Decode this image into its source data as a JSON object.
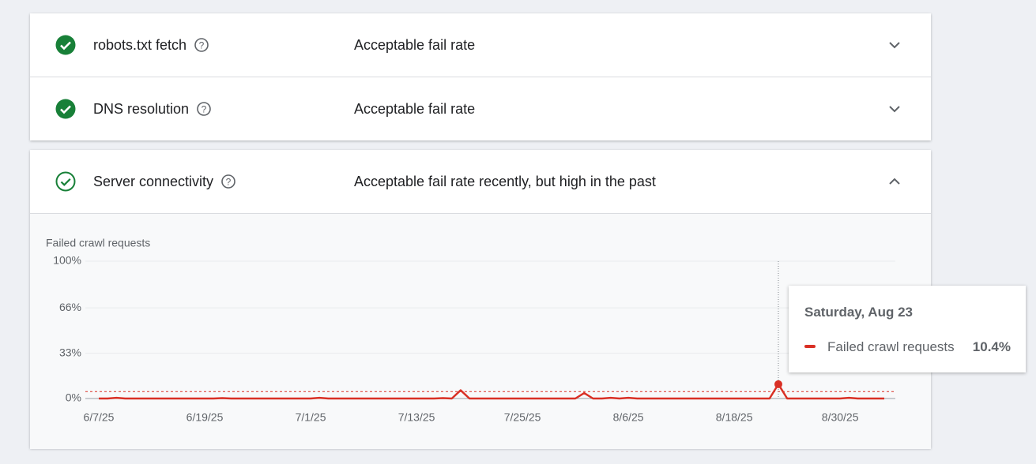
{
  "items": [
    {
      "title": "robots.txt fetch",
      "status": "Acceptable fail rate"
    },
    {
      "title": "DNS resolution",
      "status": "Acceptable fail rate"
    },
    {
      "title": "Server connectivity",
      "status": "Acceptable fail rate recently, but high in the past"
    }
  ],
  "chart_data": {
    "type": "line",
    "y_label": "Failed crawl requests",
    "x": [
      "6/7/25",
      "6/8/25",
      "6/9/25",
      "6/10/25",
      "6/11/25",
      "6/12/25",
      "6/13/25",
      "6/14/25",
      "6/15/25",
      "6/16/25",
      "6/17/25",
      "6/18/25",
      "6/19/25",
      "6/20/25",
      "6/21/25",
      "6/22/25",
      "6/23/25",
      "6/24/25",
      "6/25/25",
      "6/26/25",
      "6/27/25",
      "6/28/25",
      "6/29/25",
      "6/30/25",
      "7/1/25",
      "7/2/25",
      "7/3/25",
      "7/4/25",
      "7/5/25",
      "7/6/25",
      "7/7/25",
      "7/8/25",
      "7/9/25",
      "7/10/25",
      "7/11/25",
      "7/12/25",
      "7/13/25",
      "7/14/25",
      "7/15/25",
      "7/16/25",
      "7/17/25",
      "7/18/25",
      "7/19/25",
      "7/20/25",
      "7/21/25",
      "7/22/25",
      "7/23/25",
      "7/24/25",
      "7/25/25",
      "7/26/25",
      "7/27/25",
      "7/28/25",
      "7/29/25",
      "7/30/25",
      "7/31/25",
      "8/1/25",
      "8/2/25",
      "8/3/25",
      "8/4/25",
      "8/5/25",
      "8/6/25",
      "8/7/25",
      "8/8/25",
      "8/9/25",
      "8/10/25",
      "8/11/25",
      "8/12/25",
      "8/13/25",
      "8/14/25",
      "8/15/25",
      "8/16/25",
      "8/17/25",
      "8/18/25",
      "8/19/25",
      "8/20/25",
      "8/21/25",
      "8/22/25",
      "8/23/25",
      "8/24/25",
      "8/25/25",
      "8/26/25",
      "8/27/25",
      "8/28/25",
      "8/29/25",
      "8/30/25",
      "8/31/25",
      "9/1/25",
      "9/2/25",
      "9/3/25",
      "9/4/25"
    ],
    "series": [
      {
        "name": "Failed crawl requests",
        "color": "#d93025",
        "values": [
          0,
          0,
          0.5,
          0,
          0,
          0,
          0,
          0,
          0,
          0,
          0,
          0,
          0,
          0,
          0.3,
          0,
          0,
          0,
          0,
          0,
          0,
          0,
          0,
          0,
          0,
          0.5,
          0,
          0,
          0,
          0,
          0,
          0,
          0,
          0,
          0,
          0,
          0,
          0,
          0,
          0.3,
          0,
          6,
          0,
          0,
          0,
          0,
          0,
          0,
          0,
          0,
          0,
          0,
          0,
          0,
          0,
          4,
          0,
          0,
          0.5,
          0,
          0.5,
          0,
          0,
          0,
          0,
          0,
          0,
          0,
          0,
          0,
          0,
          0,
          0,
          0,
          0,
          0,
          0,
          10.4,
          0,
          0,
          0,
          0,
          0,
          0,
          0,
          0.5,
          0,
          0,
          0,
          0
        ]
      }
    ],
    "ylim": [
      0,
      100
    ],
    "yticks": [
      {
        "value": 0,
        "label": "0%"
      },
      {
        "value": 33,
        "label": "33%"
      },
      {
        "value": 66,
        "label": "66%"
      },
      {
        "value": 100,
        "label": "100%"
      }
    ],
    "xticks": [
      "6/7/25",
      "6/19/25",
      "7/1/25",
      "7/13/25",
      "7/25/25",
      "8/6/25",
      "8/18/25",
      "8/30/25"
    ],
    "threshold": 5,
    "grid": true,
    "tooltip": {
      "title": "Saturday, Aug 23",
      "value": 10.4,
      "label": "10.4%"
    }
  }
}
